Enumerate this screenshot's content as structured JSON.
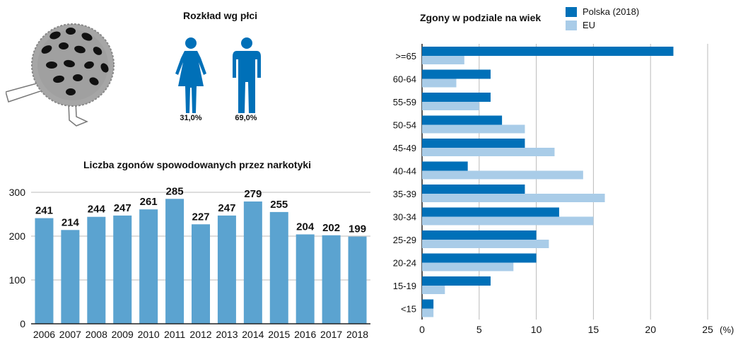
{
  "colors": {
    "dark_blue": "#0070b8",
    "light_blue": "#a9cce8",
    "mid_blue": "#5ba3d0",
    "gray": "#a0a0a0",
    "black": "#111111"
  },
  "wreath": {
    "icon": "funeral-wreath-icon"
  },
  "gender": {
    "title": "Rozkład wg płci",
    "female": {
      "icon": "female-figure-icon",
      "value": "31,0%",
      "percent": 31.0
    },
    "male": {
      "icon": "male-figure-icon",
      "value": "69,0%",
      "percent": 69.0
    }
  },
  "chart_data": [
    {
      "type": "bar",
      "title": "Liczba zgonów spowodowanych przez narkotyki",
      "categories": [
        "2006",
        "2007",
        "2008",
        "2009",
        "2010",
        "2011",
        "2012",
        "2013",
        "2014",
        "2015",
        "2016",
        "2017",
        "2018"
      ],
      "values": [
        241,
        214,
        244,
        247,
        261,
        285,
        227,
        247,
        279,
        255,
        204,
        202,
        199
      ],
      "ylim": [
        0,
        300
      ],
      "yticks": [
        0,
        100,
        200,
        300
      ],
      "xlabel": "",
      "ylabel": "",
      "grid": true
    },
    {
      "type": "bar",
      "orientation": "horizontal",
      "title": "Zgony w podziale na wiek",
      "categories": [
        ">=65",
        "60-64",
        "55-59",
        "50-54",
        "45-49",
        "40-44",
        "35-39",
        "30-34",
        "25-29",
        "20-24",
        "15-19",
        "<15"
      ],
      "series": [
        {
          "name": "Polska (2018)",
          "values": [
            22,
            6,
            6,
            7,
            9,
            4,
            9,
            12,
            10,
            10,
            6,
            1
          ]
        },
        {
          "name": "EU",
          "values": [
            3.7,
            3,
            5,
            9,
            11.6,
            14.1,
            16,
            15,
            11.1,
            8,
            2,
            1
          ]
        }
      ],
      "xlim": [
        0,
        25
      ],
      "xticks": [
        0,
        5,
        10,
        15,
        20,
        25
      ],
      "x_unit": "(%)",
      "grid": true,
      "legend_position": "top"
    }
  ]
}
